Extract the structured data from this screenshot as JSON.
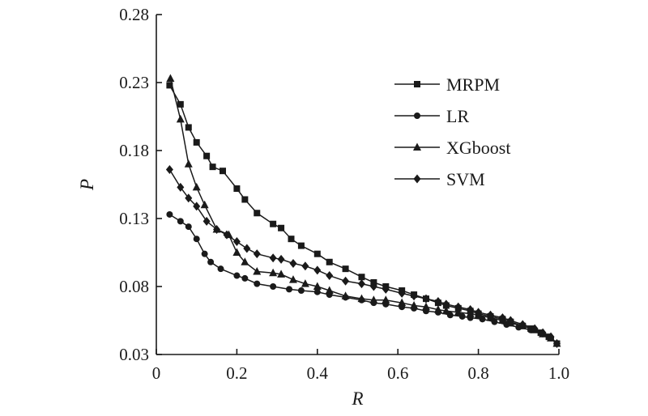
{
  "chart_data": {
    "type": "line",
    "xlabel": "R",
    "ylabel": "P",
    "xlim": [
      0,
      1.0
    ],
    "ylim": [
      0.03,
      0.28
    ],
    "x_ticks": [
      "0",
      "0.2",
      "0.4",
      "0.6",
      "0.8",
      "1.0"
    ],
    "y_ticks": [
      "0.03",
      "0.08",
      "0.13",
      "0.18",
      "0.23",
      "0.28"
    ],
    "grid": false,
    "legend_position": "top-right",
    "line_color": "#1a1a1a",
    "series": [
      {
        "name": "MRPM",
        "marker": "square",
        "points": [
          [
            0.033,
            0.228
          ],
          [
            0.06,
            0.214
          ],
          [
            0.08,
            0.197
          ],
          [
            0.1,
            0.186
          ],
          [
            0.125,
            0.176
          ],
          [
            0.14,
            0.168
          ],
          [
            0.165,
            0.165
          ],
          [
            0.2,
            0.152
          ],
          [
            0.22,
            0.144
          ],
          [
            0.25,
            0.134
          ],
          [
            0.29,
            0.126
          ],
          [
            0.31,
            0.123
          ],
          [
            0.335,
            0.115
          ],
          [
            0.36,
            0.11
          ],
          [
            0.4,
            0.104
          ],
          [
            0.43,
            0.098
          ],
          [
            0.47,
            0.093
          ],
          [
            0.51,
            0.087
          ],
          [
            0.54,
            0.083
          ],
          [
            0.57,
            0.08
          ],
          [
            0.61,
            0.077
          ],
          [
            0.64,
            0.074
          ],
          [
            0.67,
            0.071
          ],
          [
            0.7,
            0.068
          ],
          [
            0.72,
            0.066
          ],
          [
            0.75,
            0.064
          ],
          [
            0.78,
            0.062
          ],
          [
            0.8,
            0.06
          ],
          [
            0.83,
            0.058
          ],
          [
            0.86,
            0.056
          ],
          [
            0.88,
            0.054
          ],
          [
            0.91,
            0.051
          ],
          [
            0.93,
            0.049
          ],
          [
            0.955,
            0.046
          ],
          [
            0.975,
            0.043
          ],
          [
            0.995,
            0.038
          ]
        ]
      },
      {
        "name": "LR",
        "marker": "circle",
        "points": [
          [
            0.033,
            0.133
          ],
          [
            0.06,
            0.128
          ],
          [
            0.08,
            0.124
          ],
          [
            0.1,
            0.115
          ],
          [
            0.12,
            0.104
          ],
          [
            0.135,
            0.098
          ],
          [
            0.16,
            0.093
          ],
          [
            0.2,
            0.088
          ],
          [
            0.22,
            0.086
          ],
          [
            0.25,
            0.082
          ],
          [
            0.29,
            0.08
          ],
          [
            0.33,
            0.078
          ],
          [
            0.36,
            0.077
          ],
          [
            0.4,
            0.076
          ],
          [
            0.43,
            0.074
          ],
          [
            0.47,
            0.072
          ],
          [
            0.51,
            0.07
          ],
          [
            0.54,
            0.068
          ],
          [
            0.57,
            0.067
          ],
          [
            0.61,
            0.065
          ],
          [
            0.64,
            0.064
          ],
          [
            0.67,
            0.062
          ],
          [
            0.7,
            0.061
          ],
          [
            0.73,
            0.059
          ],
          [
            0.76,
            0.058
          ],
          [
            0.78,
            0.057
          ],
          [
            0.81,
            0.056
          ],
          [
            0.84,
            0.054
          ],
          [
            0.87,
            0.052
          ],
          [
            0.9,
            0.05
          ],
          [
            0.93,
            0.048
          ],
          [
            0.96,
            0.045
          ],
          [
            0.98,
            0.042
          ],
          [
            0.995,
            0.038
          ]
        ]
      },
      {
        "name": "XGboost",
        "marker": "triangle",
        "points": [
          [
            0.035,
            0.233
          ],
          [
            0.06,
            0.203
          ],
          [
            0.08,
            0.17
          ],
          [
            0.1,
            0.153
          ],
          [
            0.12,
            0.14
          ],
          [
            0.15,
            0.122
          ],
          [
            0.18,
            0.118
          ],
          [
            0.2,
            0.105
          ],
          [
            0.22,
            0.098
          ],
          [
            0.25,
            0.091
          ],
          [
            0.29,
            0.09
          ],
          [
            0.31,
            0.089
          ],
          [
            0.34,
            0.085
          ],
          [
            0.37,
            0.082
          ],
          [
            0.4,
            0.08
          ],
          [
            0.43,
            0.077
          ],
          [
            0.47,
            0.073
          ],
          [
            0.51,
            0.071
          ],
          [
            0.54,
            0.07
          ],
          [
            0.57,
            0.07
          ],
          [
            0.61,
            0.068
          ],
          [
            0.64,
            0.066
          ],
          [
            0.67,
            0.065
          ],
          [
            0.7,
            0.063
          ],
          [
            0.72,
            0.062
          ],
          [
            0.75,
            0.061
          ],
          [
            0.78,
            0.06
          ],
          [
            0.8,
            0.059
          ],
          [
            0.83,
            0.057
          ],
          [
            0.86,
            0.055
          ],
          [
            0.88,
            0.053
          ],
          [
            0.91,
            0.051
          ],
          [
            0.94,
            0.048
          ],
          [
            0.96,
            0.045
          ],
          [
            0.98,
            0.042
          ],
          [
            0.995,
            0.038
          ]
        ]
      },
      {
        "name": "SVM",
        "marker": "diamond",
        "points": [
          [
            0.033,
            0.166
          ],
          [
            0.06,
            0.153
          ],
          [
            0.08,
            0.145
          ],
          [
            0.1,
            0.139
          ],
          [
            0.125,
            0.128
          ],
          [
            0.15,
            0.122
          ],
          [
            0.175,
            0.118
          ],
          [
            0.2,
            0.113
          ],
          [
            0.225,
            0.108
          ],
          [
            0.25,
            0.104
          ],
          [
            0.29,
            0.101
          ],
          [
            0.31,
            0.1
          ],
          [
            0.34,
            0.097
          ],
          [
            0.37,
            0.095
          ],
          [
            0.4,
            0.092
          ],
          [
            0.43,
            0.088
          ],
          [
            0.47,
            0.084
          ],
          [
            0.51,
            0.082
          ],
          [
            0.54,
            0.08
          ],
          [
            0.57,
            0.078
          ],
          [
            0.61,
            0.075
          ],
          [
            0.64,
            0.073
          ],
          [
            0.67,
            0.071
          ],
          [
            0.7,
            0.069
          ],
          [
            0.72,
            0.067
          ],
          [
            0.75,
            0.065
          ],
          [
            0.78,
            0.063
          ],
          [
            0.8,
            0.061
          ],
          [
            0.83,
            0.059
          ],
          [
            0.86,
            0.057
          ],
          [
            0.88,
            0.055
          ],
          [
            0.91,
            0.052
          ],
          [
            0.94,
            0.049
          ],
          [
            0.96,
            0.046
          ],
          [
            0.98,
            0.043
          ],
          [
            0.995,
            0.038
          ]
        ]
      }
    ]
  }
}
